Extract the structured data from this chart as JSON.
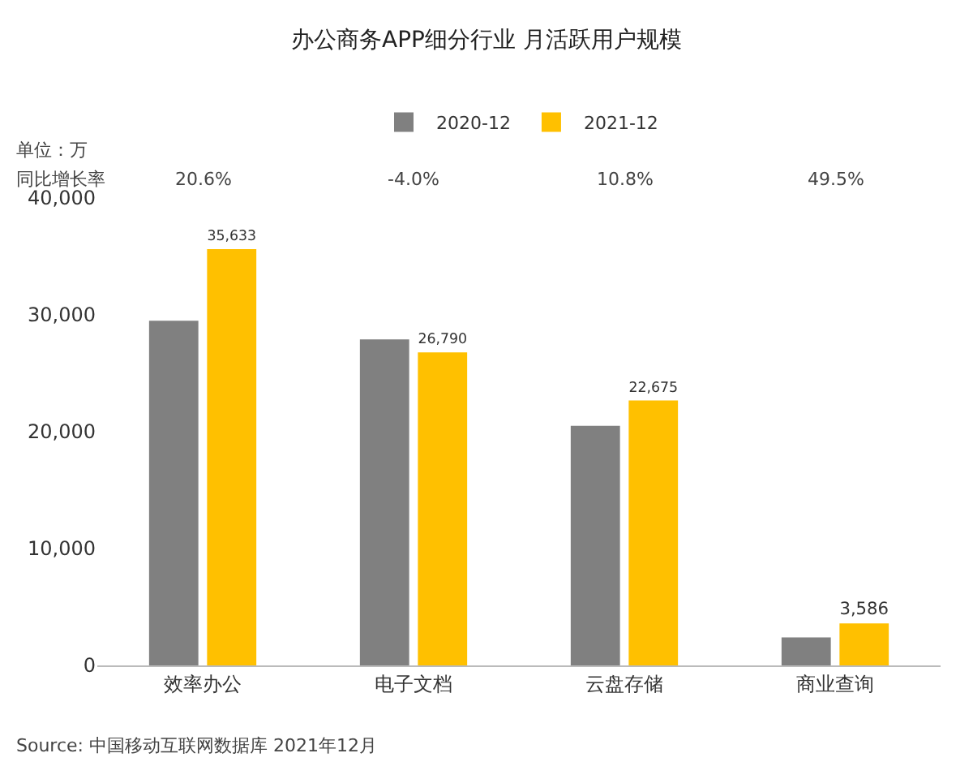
{
  "chart_data": {
    "type": "bar",
    "title": "办公商务APP细分行业 月活跃用户规模",
    "categories": [
      "效率办公",
      "电子文档",
      "云盘存储",
      "商业查询"
    ],
    "series": [
      {
        "name": "2020-12",
        "color": "#808080",
        "values": [
          29500,
          27900,
          20500,
          2400
        ]
      },
      {
        "name": "2021-12",
        "color": "#ffc000",
        "values": [
          35633,
          26790,
          22675,
          3586
        ],
        "value_labels": [
          "35,633",
          "26,790",
          "22,675",
          "3,586"
        ]
      }
    ],
    "ylim": [
      0,
      40000
    ],
    "yticks": [
      0,
      {
        "value": 10000,
        "label": "10,000"
      },
      {
        "value": 20000,
        "label": "20,000"
      },
      {
        "value": 30000,
        "label": "30,000"
      },
      {
        "value": 40000,
        "label": "40,000"
      }
    ],
    "grid": false,
    "legend": "top",
    "annotations": [
      "单位：万",
      "同比增长率",
      "20.6%",
      "-4.0%",
      "10.8%",
      "49.5%",
      "Source: 中国移动互联网数据库 2021年12月"
    ]
  }
}
